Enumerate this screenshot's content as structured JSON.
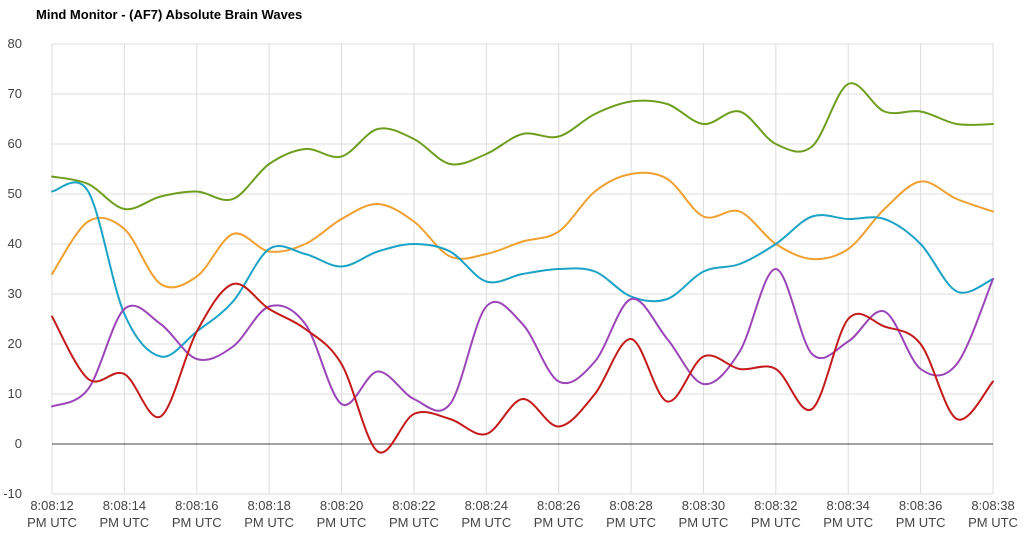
{
  "chart_data": {
    "type": "line",
    "title": "Mind Monitor - (AF7) Absolute Brain Waves",
    "xlabel": "",
    "ylabel": "",
    "ylim": [
      -10,
      80
    ],
    "yticks": [
      "80",
      "70",
      "60",
      "50",
      "40",
      "30",
      "20",
      "10",
      "0",
      "-10"
    ],
    "xticks": [
      [
        "8:08:12",
        "PM UTC"
      ],
      [
        "8:08:14",
        "PM UTC"
      ],
      [
        "8:08:16",
        "PM UTC"
      ],
      [
        "8:08:18",
        "PM UTC"
      ],
      [
        "8:08:20",
        "PM UTC"
      ],
      [
        "8:08:22",
        "PM UTC"
      ],
      [
        "8:08:24",
        "PM UTC"
      ],
      [
        "8:08:26",
        "PM UTC"
      ],
      [
        "8:08:28",
        "PM UTC"
      ],
      [
        "8:08:30",
        "PM UTC"
      ],
      [
        "8:08:32",
        "PM UTC"
      ],
      [
        "8:08:34",
        "PM UTC"
      ],
      [
        "8:08:36",
        "PM UTC"
      ],
      [
        "8:08:38",
        "PM UTC"
      ]
    ],
    "x": [
      "8:08:12",
      "8:08:13",
      "8:08:14",
      "8:08:15",
      "8:08:16",
      "8:08:17",
      "8:08:18",
      "8:08:19",
      "8:08:20",
      "8:08:21",
      "8:08:22",
      "8:08:23",
      "8:08:24",
      "8:08:25",
      "8:08:26",
      "8:08:27",
      "8:08:28",
      "8:08:29",
      "8:08:30",
      "8:08:31",
      "8:08:32",
      "8:08:33",
      "8:08:34",
      "8:08:35",
      "8:08:36",
      "8:08:37",
      "8:08:38"
    ],
    "grid": true,
    "legend": "none",
    "series": [
      {
        "color": "#6e9e1e",
        "values": [
          53.5,
          52,
          47,
          49.5,
          50.5,
          49,
          56,
          59,
          57.5,
          63,
          61,
          56,
          58,
          62,
          61.5,
          66,
          68.5,
          68,
          64,
          66.5,
          60,
          59.5,
          72,
          66.5,
          66.5,
          64,
          64
        ]
      },
      {
        "color": "#f0a030",
        "values": [
          34,
          44.5,
          43,
          32,
          33.5,
          42,
          38.5,
          40,
          45,
          48,
          44.5,
          37.5,
          38,
          40.5,
          42.5,
          50.5,
          54,
          53,
          45.5,
          46.5,
          40,
          37,
          39,
          47,
          52.5,
          49,
          46.5
        ]
      },
      {
        "color": "#1aa3c7",
        "values": [
          50.5,
          50.5,
          26,
          17.5,
          22.5,
          28.5,
          39,
          38,
          35.5,
          38.5,
          40,
          38.5,
          32.5,
          34,
          35,
          34.5,
          29.5,
          29,
          34.5,
          36,
          40,
          45.5,
          45,
          45,
          40,
          30.5,
          33
        ]
      },
      {
        "color": "#9b45b8",
        "values": [
          7.5,
          11,
          27,
          24,
          17,
          19.5,
          27.5,
          24,
          8,
          14.5,
          9,
          8,
          27.5,
          24,
          12.5,
          16.5,
          29,
          21,
          12,
          18.5,
          35,
          18,
          20.5,
          26.5,
          15,
          16,
          33
        ]
      },
      {
        "color": "#c41a1a",
        "values": [
          25.5,
          13,
          14,
          5.5,
          22.5,
          32,
          27,
          23,
          16,
          -1.5,
          6,
          5,
          2,
          9,
          3.5,
          10,
          21,
          8.5,
          17.5,
          15,
          15,
          7,
          25,
          23.5,
          20,
          5,
          12.5
        ]
      }
    ]
  }
}
